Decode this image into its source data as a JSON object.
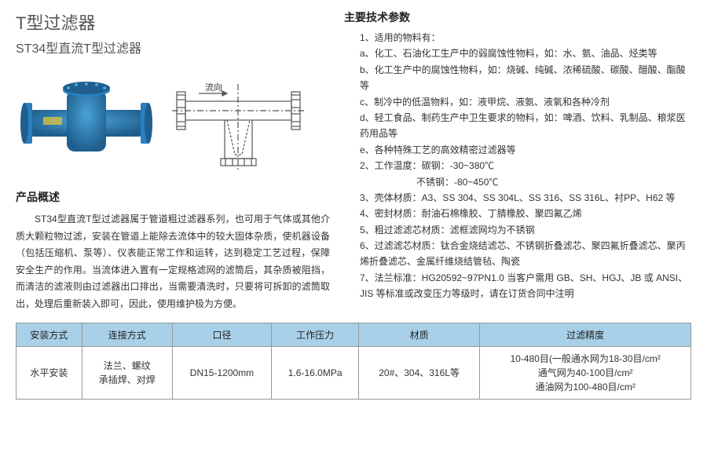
{
  "title1": "T型过滤器",
  "title2": "ST34型直流T型过滤器",
  "flowLabel": "流向",
  "overviewHeading": "产品概述",
  "overview": "ST34型直流T型过滤器属于管道粗过滤器系列，也可用于气体或其他介质大颗粒物过滤，安装在管道上能除去流体中的较大固体杂质，使机器设备（包括压缩机、泵等）、仪表能正常工作和运转，达到稳定工艺过程，保障安全生产的作用。当流体进入置有一定规格滤网的滤筒后，其杂质被阻挡，而清洁的滤液则由过滤器出口排出，当需要清洗时，只要将可拆卸的滤筒取出，处理后重新装入即可，因此，使用维护极为方便。",
  "specHeading": "主要技术参数",
  "specLines": [
    "1、适用的物料有：",
    "a、化工、石油化工生产中的弱腐蚀性物料，如：水、氨、油品、烃类等",
    "b、化工生产中的腐蚀性物料，如：烧碱、纯碱、浓稀硫酸、碳酸、醋酸、酯酸等",
    "c、制冷中的低温物料，如：液甲烷、液氨、液氧和各种冷剂",
    "d、轻工食品、制药生产中卫生要求的物料，如：啤酒、饮料、乳制品、粮浆医药用品等",
    "e、各种特殊工艺的高效精密过滤器等",
    "2、工作温度：碳钢：-30~380℃",
    "　　　　　　不锈钢：-80~450℃",
    "3、壳体材质：A3、SS 304、SS 304L、SS 316、SS 316L、衬PP、H62 等",
    "4、密封材质：耐油石棉橡胶、丁腈橡胶、聚四氟乙烯",
    "5、粗过滤滤芯材质：滤框滤网均为不锈钢",
    "6、过滤滤芯材质：钛合金烧结滤芯、不锈钢折叠滤芯、聚四氟折叠滤芯、聚丙烯折叠滤芯、金属纤维烧结管毡、陶瓷",
    "7、法兰标准：HG20592~97PN1.0 当客户需用 GB、SH、HGJ、JB 或 ANSI、JIS 等标准或改变压力等级时，请在订货合同中注明"
  ],
  "table": {
    "headerBg": "#a8d0e8",
    "borderColor": "#999999",
    "headers": [
      "安装方式",
      "连接方式",
      "口径",
      "工作压力",
      "材质",
      "过滤精度"
    ],
    "row": [
      "水平安装",
      "法兰、螺纹\n承插焊、对焊",
      "DN15-1200mm",
      "1.6-16.0MPa",
      "20#、304、316L等",
      "10-480目(一般通水网为18-30目/cm²\n通气网为40-100目/cm²\n通油网为100-480目/cm²"
    ]
  },
  "colors": {
    "productBlue": "#2a7fbf",
    "productDark": "#1f5e8e",
    "lineGray": "#555555"
  }
}
